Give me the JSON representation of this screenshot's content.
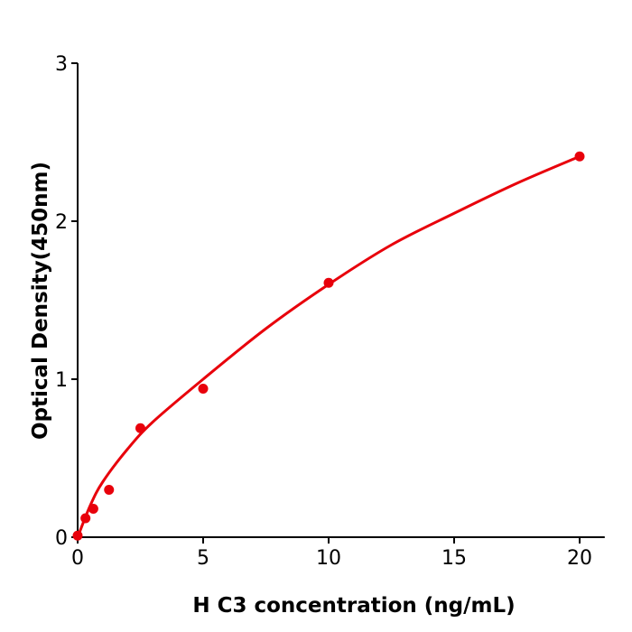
{
  "chart_data": {
    "type": "scatter",
    "title": "",
    "xlabel": "H  C3 concentration (ng/mL)",
    "ylabel": "Optical Density(450nm)",
    "xlim": [
      0,
      21
    ],
    "ylim": [
      0,
      3
    ],
    "x_ticks": [
      0,
      5,
      10,
      15,
      20
    ],
    "y_ticks": [
      0,
      1,
      2,
      3
    ],
    "grid": false,
    "color": "#e8000b",
    "points": {
      "x": [
        0,
        0.3125,
        0.625,
        1.25,
        2.5,
        5,
        10,
        20
      ],
      "y": [
        0.01,
        0.12,
        0.18,
        0.3,
        0.69,
        0.94,
        1.61,
        2.41
      ]
    },
    "fit_curve": {
      "x": [
        0,
        0.5,
        1,
        2,
        3,
        5,
        7.5,
        10,
        12.5,
        15,
        17.5,
        20
      ],
      "y": [
        0,
        0.2,
        0.35,
        0.56,
        0.73,
        1.0,
        1.32,
        1.6,
        1.85,
        2.05,
        2.24,
        2.41
      ]
    }
  }
}
